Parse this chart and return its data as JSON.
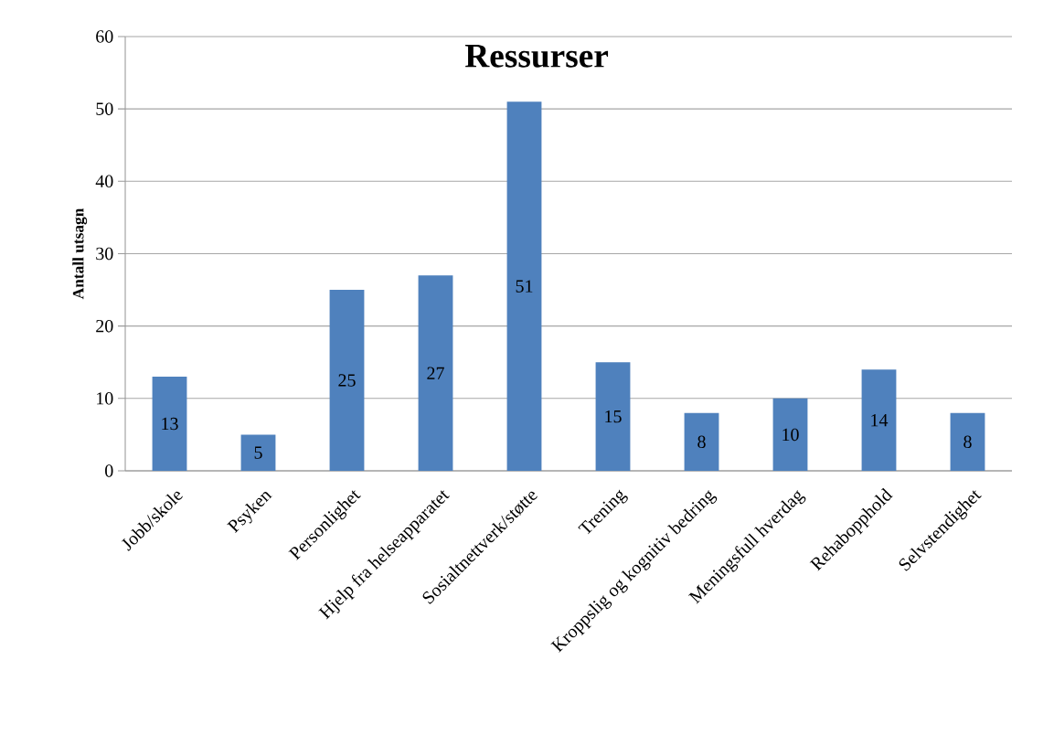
{
  "chart_data": {
    "type": "bar",
    "title": "Ressurser",
    "ylabel": "Antall utsagn",
    "categories": [
      "Jobb/skole",
      "Psyken",
      "Personlighet",
      "Hjelp fra helseapparatet",
      "Sosialtnettverk/støtte",
      "Trening",
      "Kroppslig og kognitiv bedring",
      "Meningsfull hverdag",
      "Rehabopphold",
      "Selvstendighet"
    ],
    "values": [
      13,
      5,
      25,
      27,
      51,
      15,
      8,
      10,
      14,
      8
    ],
    "color": "#4f81bd",
    "ylim": [
      0,
      60
    ],
    "yticks": [
      0,
      10,
      20,
      30,
      40,
      50,
      60
    ],
    "grid": "y",
    "data_labels": true
  }
}
